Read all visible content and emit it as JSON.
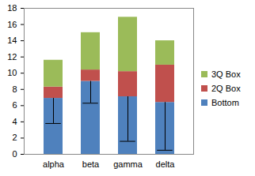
{
  "chart_data": {
    "type": "bar",
    "stacked": true,
    "legend": "right",
    "grid": false,
    "categories": [
      "alpha",
      "beta",
      "gamma",
      "delta"
    ],
    "series": [
      {
        "name": "Bottom",
        "color": "#4f81bd",
        "values": [
          6.9,
          9.0,
          7.1,
          6.4
        ],
        "errors_minus": [
          3.1,
          2.7,
          5.5,
          5.9
        ]
      },
      {
        "name": "2Q Box",
        "color": "#c0504d",
        "values": [
          1.4,
          1.4,
          3.1,
          4.6
        ]
      },
      {
        "name": "3Q Box",
        "color": "#9bbb59",
        "values": [
          3.3,
          4.6,
          6.7,
          3.0
        ]
      }
    ],
    "ylim": [
      0,
      18
    ],
    "yticks": [
      0,
      2,
      4,
      6,
      8,
      10,
      12,
      14,
      16,
      18
    ]
  }
}
